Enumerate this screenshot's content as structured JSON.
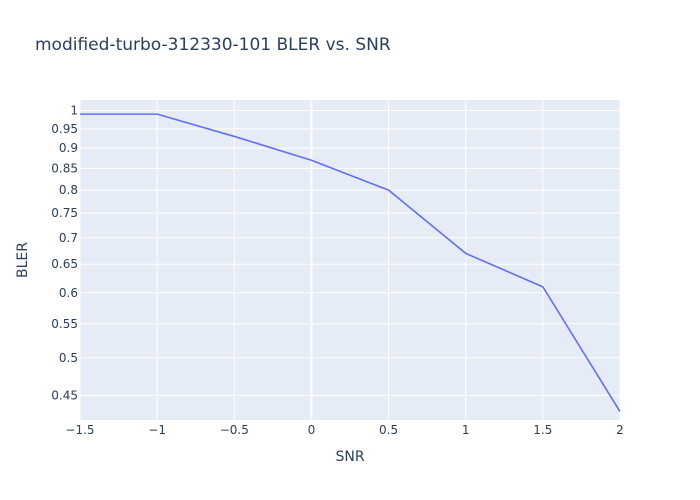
{
  "chart_data": {
    "type": "line",
    "title": "modified-turbo-312330-101 BLER vs. SNR",
    "xlabel": "SNR",
    "ylabel": "BLER",
    "x_scale": "linear",
    "y_scale": "log",
    "xlim": [
      -1.5,
      2
    ],
    "ylim": [
      0.42,
      1.03
    ],
    "grid": true,
    "x_ticks": [
      "−1.5",
      "−1",
      "−0.5",
      "0",
      "0.5",
      "1",
      "1.5",
      "2"
    ],
    "x_tick_values": [
      -1.5,
      -1,
      -0.5,
      0,
      0.5,
      1,
      1.5,
      2
    ],
    "y_ticks": [
      "0.45",
      "0.5",
      "0.55",
      "0.6",
      "0.65",
      "0.7",
      "0.75",
      "0.8",
      "0.85",
      "0.9",
      "0.95",
      "1"
    ],
    "y_tick_values": [
      0.45,
      0.5,
      0.55,
      0.6,
      0.65,
      0.7,
      0.75,
      0.8,
      0.85,
      0.9,
      0.95,
      1
    ],
    "series": [
      {
        "x": [
          -1.5,
          -1,
          -0.5,
          0,
          0.5,
          1,
          1.5,
          2
        ],
        "y": [
          0.99,
          0.99,
          0.93,
          0.87,
          0.8,
          0.67,
          0.61,
          0.43
        ],
        "color": "#636efa"
      }
    ],
    "colors": {
      "plot_bg": "#e5ecf6",
      "grid": "#ffffff",
      "text": "#2a3f5f"
    }
  }
}
